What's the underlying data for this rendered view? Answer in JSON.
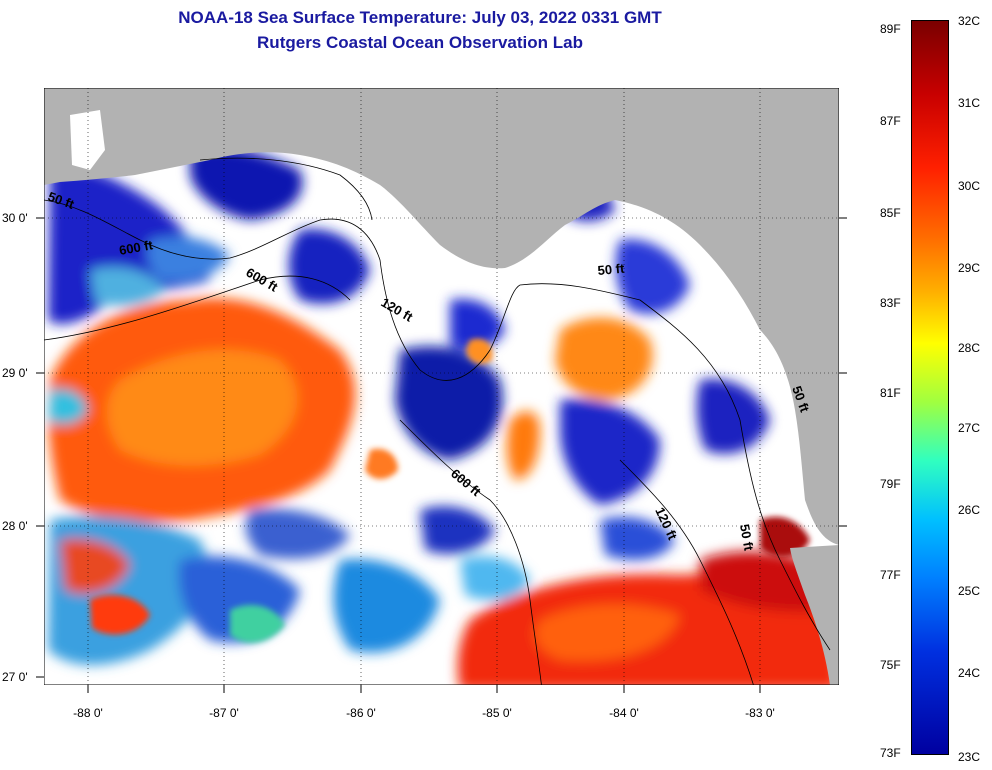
{
  "title_line1": "NOAA-18 Sea Surface Temperature:  July 03, 2022 0331 GMT",
  "title_line2": "Rutgers Coastal Ocean Observation Lab",
  "lat_labels": [
    "30 0'",
    "29 0'",
    "28 0'",
    "27 0'"
  ],
  "lon_labels": [
    "-88 0'",
    "-87 0'",
    "-86 0'",
    "-85 0'",
    "-84 0'",
    "-83 0'"
  ],
  "contour_labels": [
    "50 ft",
    "600 ft",
    "600 ft",
    "120 ft",
    "50 ft",
    "600 ft",
    "120 ft",
    "50 ft",
    "50 ft"
  ],
  "colorbar": {
    "fahrenheit": [
      "89F",
      "87F",
      "85F",
      "83F",
      "81F",
      "79F",
      "77F",
      "75F",
      "73F"
    ],
    "celsius": [
      "32C",
      "31C",
      "30C",
      "29C",
      "28C",
      "27C",
      "26C",
      "25C",
      "24C",
      "23C"
    ]
  },
  "colors": {
    "land": "#b2b2b2",
    "cloud": "#ffffff",
    "title": "#1a1aa0"
  }
}
